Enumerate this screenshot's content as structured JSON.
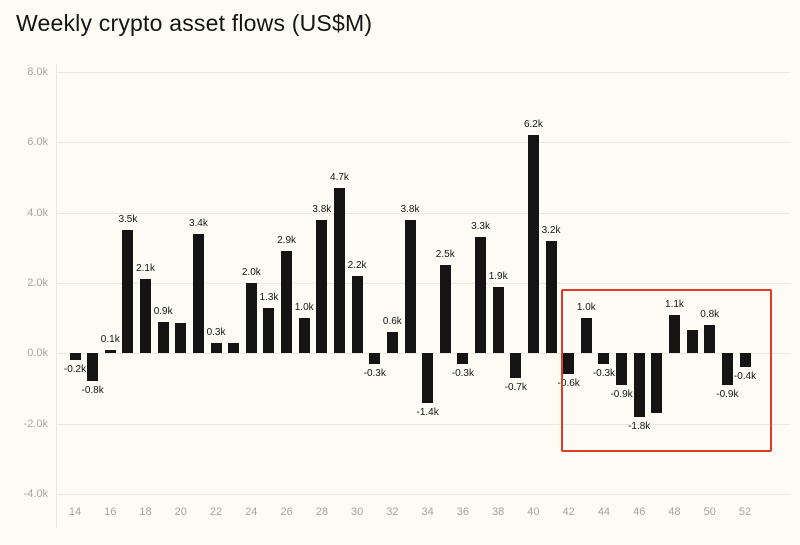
{
  "title": "Weekly crypto asset flows (US$M)",
  "chart_data": {
    "type": "bar",
    "title": "Weekly crypto asset flows (US$M)",
    "xlabel": "",
    "ylabel": "",
    "x": [
      14,
      15,
      16,
      17,
      18,
      19,
      20,
      21,
      22,
      23,
      24,
      25,
      26,
      27,
      28,
      29,
      30,
      31,
      32,
      33,
      34,
      35,
      36,
      37,
      38,
      39,
      40,
      41,
      42,
      43,
      44,
      45,
      46,
      47,
      48,
      49,
      50,
      51,
      52
    ],
    "values": [
      -0.2,
      -0.8,
      0.1,
      3.5,
      2.1,
      0.9,
      0.85,
      3.4,
      0.3,
      0.3,
      2.0,
      1.3,
      2.9,
      1.0,
      3.8,
      4.7,
      2.2,
      -0.3,
      0.6,
      3.8,
      -1.4,
      2.5,
      -0.3,
      3.3,
      1.9,
      -0.7,
      6.2,
      3.2,
      -0.6,
      1.0,
      -0.3,
      -0.9,
      -1.8,
      -1.7,
      1.1,
      0.65,
      0.8,
      -0.9,
      -0.4
    ],
    "bar_labels": [
      "-0.2k",
      "-0.8k",
      "0.1k",
      "3.5k",
      "2.1k",
      "0.9k",
      "",
      "3.4k",
      "0.3k",
      "",
      "2.0k",
      "1.3k",
      "2.9k",
      "1.0k",
      "3.8k",
      "4.7k",
      "2.2k",
      "-0.3k",
      "0.6k",
      "3.8k",
      "-1.4k",
      "2.5k",
      "-0.3k",
      "3.3k",
      "1.9k",
      "-0.7k",
      "6.2k",
      "3.2k",
      "-0.6k",
      "1.0k",
      "-0.3k",
      "-0.9k",
      "-1.8k",
      "",
      "1.1k",
      "",
      "0.8k",
      "-0.9k",
      "-0.4k"
    ],
    "units": "k (thousand US$M)",
    "yticks": [
      8.0,
      6.0,
      4.0,
      2.0,
      0.0,
      -2.0,
      -4.0
    ],
    "ytick_labels": [
      "8.0k",
      "6.0k",
      "4.0k",
      "2.0k",
      "0.0k",
      "-2.0k",
      "-4.0k"
    ],
    "xticks": [
      14,
      16,
      18,
      20,
      22,
      24,
      26,
      28,
      30,
      32,
      34,
      36,
      38,
      40,
      42,
      44,
      46,
      48,
      50,
      52
    ],
    "ylim": [
      -4.8,
      8.4
    ],
    "grid": true,
    "legend": "none",
    "bar_color": "#141414",
    "background_color": "#fcfbf4",
    "gridline_color": "#eaeae1",
    "axis_text_color": "#a6a69c",
    "highlight_box": {
      "week_start": 41.55,
      "week_end": 53.3,
      "value_top": 1.82,
      "value_bottom": -2.7,
      "color": "#e13b28"
    }
  }
}
